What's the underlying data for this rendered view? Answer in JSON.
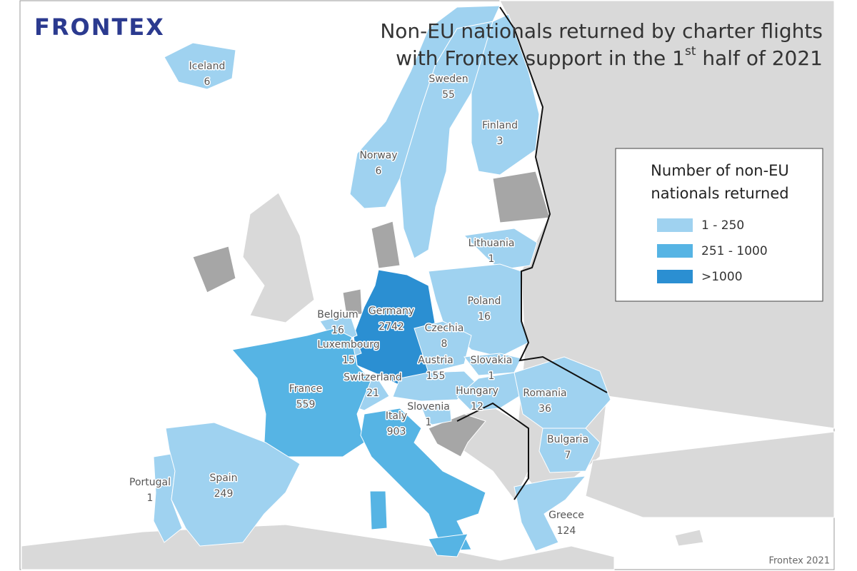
{
  "logo": "FRONTEX",
  "title": {
    "line1": "Non-EU nationals returned by charter flights",
    "line2_start": "with Frontex support in the 1",
    "line2_sup": "st",
    "line2_end": " half of 2021"
  },
  "legend": {
    "title_line1": "Number of non-EU",
    "title_line2": "nationals returned",
    "items": [
      {
        "label": "1 - 250",
        "color": "#9fd2f0"
      },
      {
        "label": "251 - 1000",
        "color": "#56b4e4"
      },
      {
        "label": ">1000",
        "color": "#2b8fd2"
      }
    ]
  },
  "countries": [
    {
      "name": "Iceland",
      "value": 6,
      "color": "#9fd2f0"
    },
    {
      "name": "Sweden",
      "value": 55,
      "color": "#9fd2f0"
    },
    {
      "name": "Finland",
      "value": 3,
      "color": "#9fd2f0"
    },
    {
      "name": "Norway",
      "value": 6,
      "color": "#9fd2f0"
    },
    {
      "name": "Lithuania",
      "value": 1,
      "color": "#9fd2f0"
    },
    {
      "name": "Germany",
      "value": 2742,
      "color": "#2b8fd2"
    },
    {
      "name": "Poland",
      "value": 16,
      "color": "#9fd2f0"
    },
    {
      "name": "Belgium",
      "value": 16,
      "color": "#9fd2f0"
    },
    {
      "name": "Czechia",
      "value": 8,
      "color": "#9fd2f0"
    },
    {
      "name": "Luxembourg",
      "value": 15,
      "color": "#9fd2f0"
    },
    {
      "name": "Austria",
      "value": 155,
      "color": "#9fd2f0"
    },
    {
      "name": "Slovakia",
      "value": 1,
      "color": "#9fd2f0"
    },
    {
      "name": "Switzerland",
      "value": 21,
      "color": "#9fd2f0"
    },
    {
      "name": "France",
      "value": 559,
      "color": "#56b4e4"
    },
    {
      "name": "Hungary",
      "value": 12,
      "color": "#9fd2f0"
    },
    {
      "name": "Romania",
      "value": 36,
      "color": "#9fd2f0"
    },
    {
      "name": "Slovenia",
      "value": 1,
      "color": "#9fd2f0"
    },
    {
      "name": "Italy",
      "value": 903,
      "color": "#56b4e4"
    },
    {
      "name": "Bulgaria",
      "value": 7,
      "color": "#9fd2f0"
    },
    {
      "name": "Portugal",
      "value": 1,
      "color": "#9fd2f0"
    },
    {
      "name": "Spain",
      "value": 249,
      "color": "#9fd2f0"
    },
    {
      "name": "Greece",
      "value": 124,
      "color": "#9fd2f0"
    }
  ],
  "credit": "Frontex 2021"
}
